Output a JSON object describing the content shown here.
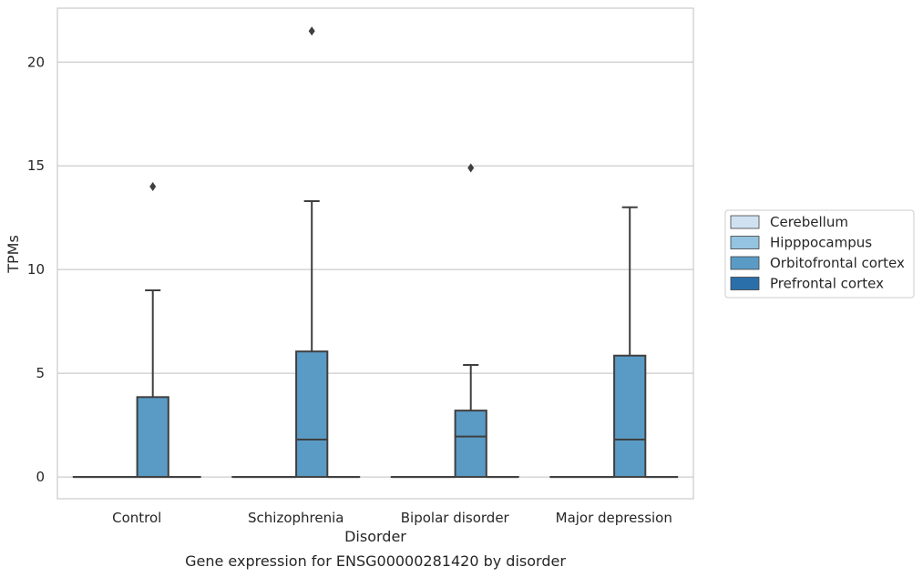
{
  "chart_data": {
    "type": "box",
    "title": "",
    "caption": "Gene expression for ENSG00000281420 by disorder",
    "xlabel": "Disorder",
    "ylabel": "TPMs",
    "ylim": [
      -1.05,
      22.6
    ],
    "yticks": [
      "0",
      "5",
      "10",
      "15",
      "20"
    ],
    "grid": "horizontal",
    "legend_position": "right",
    "categories": [
      "Control",
      "Schizophrenia",
      "Bipolar disorder",
      "Major depression"
    ],
    "series": [
      {
        "name": "Cerebellum",
        "color": "#d0e1f2",
        "boxes": [
          {
            "whislo": 0,
            "q1": 0,
            "med": 0,
            "q3": 0,
            "whishi": 0,
            "fliers": []
          },
          {
            "whislo": 0,
            "q1": 0,
            "med": 0,
            "q3": 0,
            "whishi": 0,
            "fliers": []
          },
          {
            "whislo": 0,
            "q1": 0,
            "med": 0,
            "q3": 0,
            "whishi": 0,
            "fliers": []
          },
          {
            "whislo": 0,
            "q1": 0,
            "med": 0,
            "q3": 0,
            "whishi": 0,
            "fliers": []
          }
        ]
      },
      {
        "name": "Hipppocampus",
        "color": "#94c4df",
        "boxes": [
          {
            "whislo": 0,
            "q1": 0,
            "med": 0,
            "q3": 0,
            "whishi": 0,
            "fliers": []
          },
          {
            "whislo": 0,
            "q1": 0,
            "med": 0,
            "q3": 0,
            "whishi": 0,
            "fliers": []
          },
          {
            "whislo": 0,
            "q1": 0,
            "med": 0,
            "q3": 0,
            "whishi": 0,
            "fliers": []
          },
          {
            "whislo": 0,
            "q1": 0,
            "med": 0,
            "q3": 0,
            "whishi": 0,
            "fliers": []
          }
        ]
      },
      {
        "name": "Orbitofrontal cortex",
        "color": "#5a9bc6",
        "boxes": [
          {
            "whislo": 0,
            "q1": 0,
            "med": 0,
            "q3": 3.85,
            "whishi": 9.0,
            "fliers": [
              14.0
            ]
          },
          {
            "whislo": 0,
            "q1": 0,
            "med": 1.8,
            "q3": 6.05,
            "whishi": 13.3,
            "fliers": [
              21.5
            ]
          },
          {
            "whislo": 0,
            "q1": 0,
            "med": 1.95,
            "q3": 3.2,
            "whishi": 5.4,
            "fliers": [
              14.9
            ]
          },
          {
            "whislo": 0,
            "q1": 0,
            "med": 1.8,
            "q3": 5.85,
            "whishi": 13.0,
            "fliers": []
          }
        ]
      },
      {
        "name": "Prefrontal cortex",
        "color": "#2b6faa",
        "boxes": [
          {
            "whislo": 0,
            "q1": 0,
            "med": 0,
            "q3": 0,
            "whishi": 0,
            "fliers": []
          },
          {
            "whislo": 0,
            "q1": 0,
            "med": 0,
            "q3": 0,
            "whishi": 0,
            "fliers": []
          },
          {
            "whislo": 0,
            "q1": 0,
            "med": 0,
            "q3": 0,
            "whishi": 0,
            "fliers": []
          },
          {
            "whislo": 0,
            "q1": 0,
            "med": 0,
            "q3": 0,
            "whishi": 0,
            "fliers": []
          }
        ]
      }
    ]
  }
}
